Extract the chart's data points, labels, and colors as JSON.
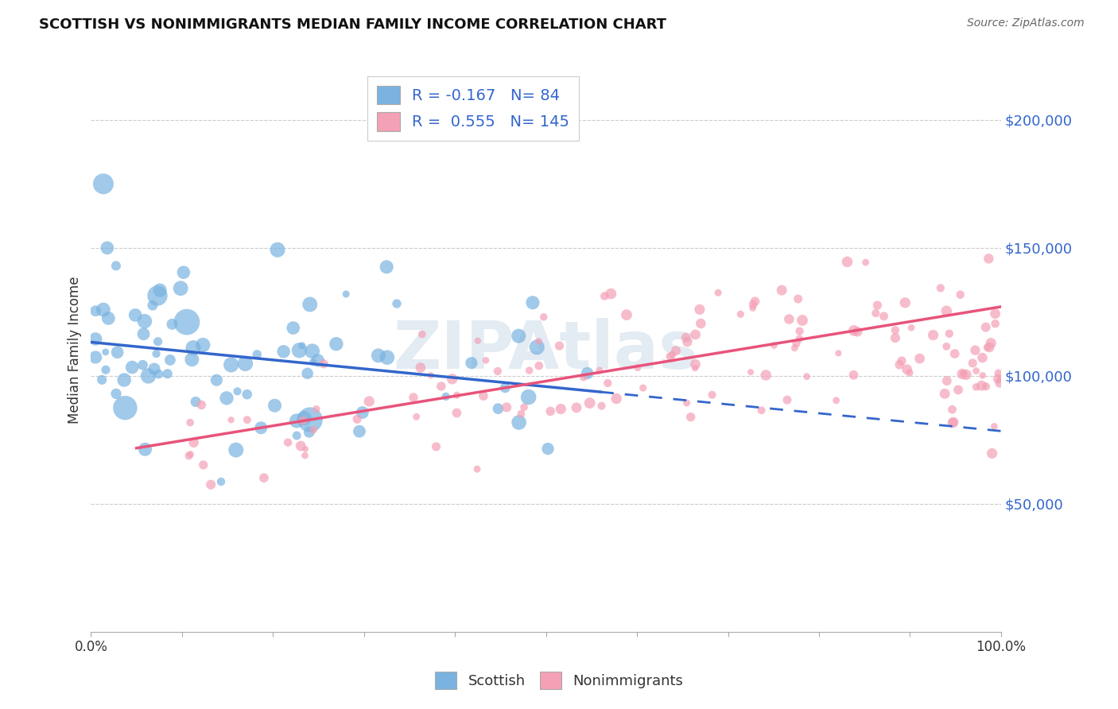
{
  "title": "SCOTTISH VS NONIMMIGRANTS MEDIAN FAMILY INCOME CORRELATION CHART",
  "source": "Source: ZipAtlas.com",
  "ylabel": "Median Family Income",
  "ytick_labels": [
    "$50,000",
    "$100,000",
    "$150,000",
    "$200,000"
  ],
  "ytick_values": [
    50000,
    100000,
    150000,
    200000
  ],
  "ylim": [
    0,
    220000
  ],
  "xlim": [
    0.0,
    1.0
  ],
  "R_scottish": -0.167,
  "N_scottish": 84,
  "R_nonimmigrants": 0.555,
  "N_nonimmigrants": 145,
  "scottish_color": "#7ab3e0",
  "nonimmigrant_color": "#f4a0b5",
  "line_scottish_color": "#3366cc",
  "line_nonimmigrant_color": "#e8537a",
  "watermark": "ZIPAtlas"
}
